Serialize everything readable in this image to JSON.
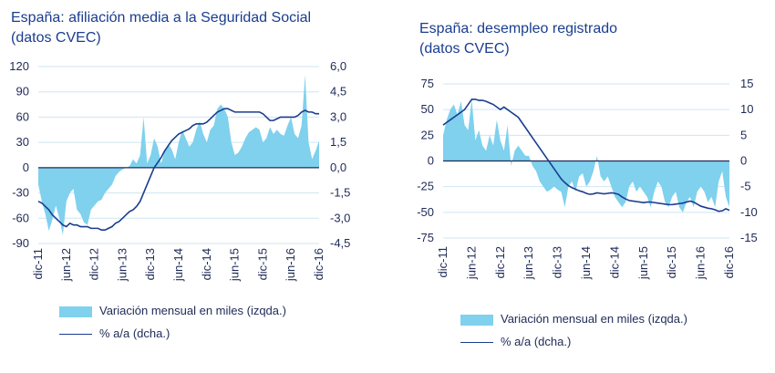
{
  "colors": {
    "area": "#7fd1ee",
    "line": "#1a3d8f",
    "zero_line": "#1f2a57",
    "grid": "#cfe5f2",
    "text": "#1f2a57",
    "title": "#1a3d8f"
  },
  "chart_data": [
    {
      "type": "area",
      "title": "España: afiliación media a la Seguridad Social",
      "subtitle": "(datos CVEC)",
      "x_tick_labels": [
        "dic-11",
        "jun-12",
        "dic-12",
        "jun-13",
        "dic-13",
        "jun-14",
        "dic-14",
        "jun-15",
        "dic-15",
        "jun-16",
        "dic-16"
      ],
      "y_left": {
        "ticks": [
          "120",
          "90",
          "60",
          "30",
          "0",
          "-30",
          "-60",
          "-90"
        ],
        "ylim": [
          -90,
          120
        ]
      },
      "y_right": {
        "ticks": [
          "6,0",
          "4,5",
          "3,0",
          "1,5",
          "0,0",
          "-1,5",
          "-3,0",
          "-4,5"
        ],
        "ylim": [
          -4.5,
          6.0
        ]
      },
      "grid": true,
      "legend_position": "bottom",
      "series": [
        {
          "name": "Variación mensual en miles (izqda.)",
          "axis": "left",
          "values": [
            -20,
            -40,
            -55,
            -75,
            -62,
            -45,
            -60,
            -80,
            -40,
            -30,
            -25,
            -50,
            -55,
            -65,
            -68,
            -50,
            -45,
            -40,
            -38,
            -30,
            -25,
            -20,
            -10,
            -5,
            -2,
            0,
            2,
            10,
            5,
            15,
            60,
            5,
            15,
            35,
            25,
            5,
            20,
            28,
            22,
            10,
            30,
            45,
            35,
            25,
            30,
            45,
            55,
            40,
            30,
            45,
            50,
            70,
            75,
            70,
            60,
            30,
            15,
            18,
            25,
            35,
            42,
            45,
            48,
            45,
            30,
            35,
            48,
            40,
            45,
            40,
            38,
            50,
            60,
            40,
            35,
            50,
            110,
            30,
            10,
            20,
            32
          ]
        },
        {
          "name": "% a/a (dcha.)",
          "axis": "right",
          "values": [
            -2.0,
            -2.1,
            -2.3,
            -2.5,
            -2.8,
            -3.0,
            -3.2,
            -3.4,
            -3.5,
            -3.3,
            -3.4,
            -3.4,
            -3.5,
            -3.5,
            -3.5,
            -3.6,
            -3.6,
            -3.6,
            -3.7,
            -3.7,
            -3.6,
            -3.5,
            -3.3,
            -3.2,
            -3.0,
            -2.8,
            -2.6,
            -2.5,
            -2.3,
            -2.0,
            -1.5,
            -1.0,
            -0.5,
            0.0,
            0.3,
            0.6,
            1.0,
            1.3,
            1.6,
            1.8,
            2.0,
            2.1,
            2.2,
            2.3,
            2.5,
            2.6,
            2.6,
            2.6,
            2.7,
            2.9,
            3.1,
            3.3,
            3.4,
            3.5,
            3.5,
            3.4,
            3.3,
            3.3,
            3.3,
            3.3,
            3.3,
            3.3,
            3.3,
            3.3,
            3.2,
            3.0,
            2.8,
            2.8,
            2.9,
            3.0,
            3.0,
            3.0,
            3.0,
            3.0,
            3.1,
            3.3,
            3.4,
            3.3,
            3.3,
            3.2,
            3.2
          ]
        }
      ]
    },
    {
      "type": "area",
      "title": "España: desempleo registrado",
      "subtitle": "(datos CVEC)",
      "x_tick_labels": [
        "dic-11",
        "jun-12",
        "dic-12",
        "jun-13",
        "dic-13",
        "jun-14",
        "dic-14",
        "jun-15",
        "dic-15",
        "jun-16",
        "dic-16"
      ],
      "y_left": {
        "ticks": [
          "75",
          "50",
          "25",
          "0",
          "-25",
          "-50",
          "-75"
        ],
        "ylim": [
          -75,
          75
        ]
      },
      "y_right": {
        "ticks": [
          "15",
          "10",
          "5",
          "0",
          "-5",
          "-10",
          "-15"
        ],
        "ylim": [
          -15,
          15
        ]
      },
      "grid": true,
      "legend_position": "bottom",
      "series": [
        {
          "name": "Variación mensual en miles (izqda.)",
          "axis": "left",
          "values": [
            25,
            40,
            50,
            55,
            45,
            58,
            35,
            30,
            60,
            20,
            30,
            15,
            10,
            25,
            15,
            40,
            20,
            10,
            35,
            -5,
            10,
            15,
            10,
            5,
            5,
            -5,
            -10,
            -20,
            -25,
            -30,
            -28,
            -25,
            -28,
            -30,
            -45,
            -25,
            -20,
            -30,
            -15,
            -12,
            -25,
            -20,
            -10,
            5,
            -15,
            -20,
            -15,
            -25,
            -35,
            -40,
            -45,
            -40,
            -25,
            -20,
            -30,
            -25,
            -30,
            -35,
            -45,
            -30,
            -20,
            -25,
            -40,
            -45,
            -35,
            -30,
            -45,
            -50,
            -40,
            -35,
            -45,
            -30,
            -25,
            -30,
            -40,
            -35,
            -45,
            -20,
            -10,
            -35,
            -45
          ]
        },
        {
          "name": "% a/a (dcha.)",
          "axis": "right",
          "values": [
            7.0,
            7.5,
            8.0,
            8.5,
            9.0,
            9.5,
            10.0,
            11.0,
            12.0,
            12.0,
            11.8,
            11.8,
            11.6,
            11.3,
            11.0,
            10.5,
            10.0,
            10.5,
            10.0,
            9.5,
            9.0,
            8.5,
            7.5,
            6.5,
            5.5,
            4.5,
            3.5,
            2.5,
            1.5,
            0.5,
            -0.5,
            -1.5,
            -2.5,
            -3.5,
            -4.2,
            -4.8,
            -5.2,
            -5.5,
            -5.8,
            -6.0,
            -6.3,
            -6.5,
            -6.4,
            -6.2,
            -6.3,
            -6.4,
            -6.3,
            -6.2,
            -6.3,
            -6.5,
            -7.0,
            -7.4,
            -7.7,
            -7.8,
            -7.9,
            -8.0,
            -8.1,
            -8.0,
            -8.0,
            -8.1,
            -8.2,
            -8.3,
            -8.4,
            -8.5,
            -8.5,
            -8.4,
            -8.3,
            -8.2,
            -8.0,
            -7.8,
            -8.0,
            -8.4,
            -8.8,
            -9.0,
            -9.2,
            -9.3,
            -9.5,
            -9.8,
            -9.7,
            -9.3,
            -9.6
          ]
        }
      ]
    }
  ]
}
